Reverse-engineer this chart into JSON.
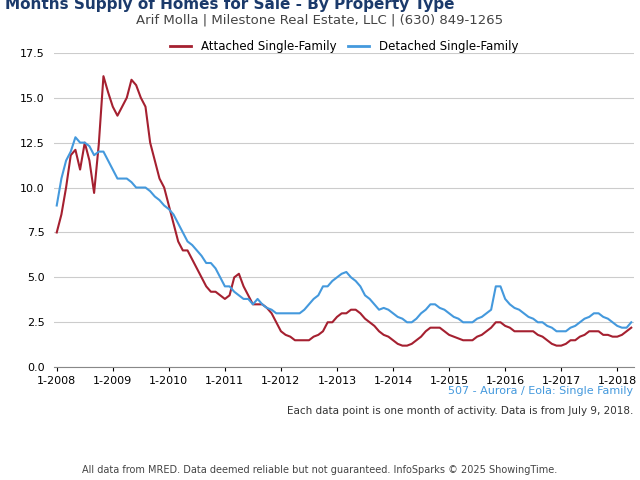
{
  "title": "Months Supply of Homes for Sale - By Property Type",
  "header": "Arif Molla | Milestone Real Estate, LLC | (630) 849-1265",
  "footer1": "507 - Aurora / Eola: Single Family",
  "footer2": "Each data point is one month of activity. Data is from July 9, 2018.",
  "footer3": "All data from MRED. Data deemed reliable but not guaranteed. InfoSparks © 2025 ShowingTime.",
  "legend_attached": "Attached Single-Family",
  "legend_detached": "Detached Single-Family",
  "color_attached": "#A52030",
  "color_detached": "#4499DD",
  "footer1_color": "#4499DD",
  "title_color": "#1B3A6B",
  "header_color": "#444444",
  "header_bg": "#E0E0E0",
  "background_color": "#ffffff",
  "plot_bg_color": "#ffffff",
  "grid_color": "#cccccc",
  "ylim": [
    0,
    17.5
  ],
  "yticks": [
    0.0,
    2.5,
    5.0,
    7.5,
    10.0,
    12.5,
    15.0,
    17.5
  ],
  "x_labels": [
    "1-2008",
    "1-2009",
    "1-2010",
    "1-2011",
    "1-2012",
    "1-2013",
    "1-2014",
    "1-2015",
    "1-2016",
    "1-2017",
    "1-2018"
  ],
  "attached": [
    7.5,
    8.5,
    10.0,
    11.8,
    12.1,
    11.0,
    12.5,
    11.5,
    9.7,
    12.4,
    16.2,
    15.3,
    14.5,
    14.0,
    14.5,
    15.0,
    16.0,
    15.7,
    15.0,
    14.5,
    12.5,
    11.5,
    10.5,
    10.0,
    9.0,
    8.0,
    7.0,
    6.5,
    6.5,
    6.0,
    5.5,
    5.0,
    4.5,
    4.2,
    4.2,
    4.0,
    3.8,
    4.0,
    5.0,
    5.2,
    4.5,
    4.0,
    3.5,
    3.5,
    3.5,
    3.3,
    3.0,
    2.5,
    2.0,
    1.8,
    1.7,
    1.5,
    1.5,
    1.5,
    1.5,
    1.7,
    1.8,
    2.0,
    2.5,
    2.5,
    2.8,
    3.0,
    3.0,
    3.2,
    3.2,
    3.0,
    2.7,
    2.5,
    2.3,
    2.0,
    1.8,
    1.7,
    1.5,
    1.3,
    1.2,
    1.2,
    1.3,
    1.5,
    1.7,
    2.0,
    2.2,
    2.2,
    2.2,
    2.0,
    1.8,
    1.7,
    1.6,
    1.5,
    1.5,
    1.5,
    1.7,
    1.8,
    2.0,
    2.2,
    2.5,
    2.5,
    2.3,
    2.2,
    2.0,
    2.0,
    2.0,
    2.0,
    2.0,
    1.8,
    1.7,
    1.5,
    1.3,
    1.2,
    1.2,
    1.3,
    1.5,
    1.5,
    1.7,
    1.8,
    2.0,
    2.0,
    2.0,
    1.8,
    1.8,
    1.7,
    1.7,
    1.8,
    2.0,
    2.2
  ],
  "detached": [
    9.0,
    10.5,
    11.5,
    12.0,
    12.8,
    12.5,
    12.5,
    12.3,
    11.8,
    12.0,
    12.0,
    11.5,
    11.0,
    10.5,
    10.5,
    10.5,
    10.3,
    10.0,
    10.0,
    10.0,
    9.8,
    9.5,
    9.3,
    9.0,
    8.8,
    8.5,
    8.0,
    7.5,
    7.0,
    6.8,
    6.5,
    6.2,
    5.8,
    5.8,
    5.5,
    5.0,
    4.5,
    4.5,
    4.2,
    4.0,
    3.8,
    3.8,
    3.5,
    3.8,
    3.5,
    3.3,
    3.2,
    3.0,
    3.0,
    3.0,
    3.0,
    3.0,
    3.0,
    3.2,
    3.5,
    3.8,
    4.0,
    4.5,
    4.5,
    4.8,
    5.0,
    5.2,
    5.3,
    5.0,
    4.8,
    4.5,
    4.0,
    3.8,
    3.5,
    3.2,
    3.3,
    3.2,
    3.0,
    2.8,
    2.7,
    2.5,
    2.5,
    2.7,
    3.0,
    3.2,
    3.5,
    3.5,
    3.3,
    3.2,
    3.0,
    2.8,
    2.7,
    2.5,
    2.5,
    2.5,
    2.7,
    2.8,
    3.0,
    3.2,
    4.5,
    4.5,
    3.8,
    3.5,
    3.3,
    3.2,
    3.0,
    2.8,
    2.7,
    2.5,
    2.5,
    2.3,
    2.2,
    2.0,
    2.0,
    2.0,
    2.2,
    2.3,
    2.5,
    2.7,
    2.8,
    3.0,
    3.0,
    2.8,
    2.7,
    2.5,
    2.3,
    2.2,
    2.2,
    2.5
  ]
}
